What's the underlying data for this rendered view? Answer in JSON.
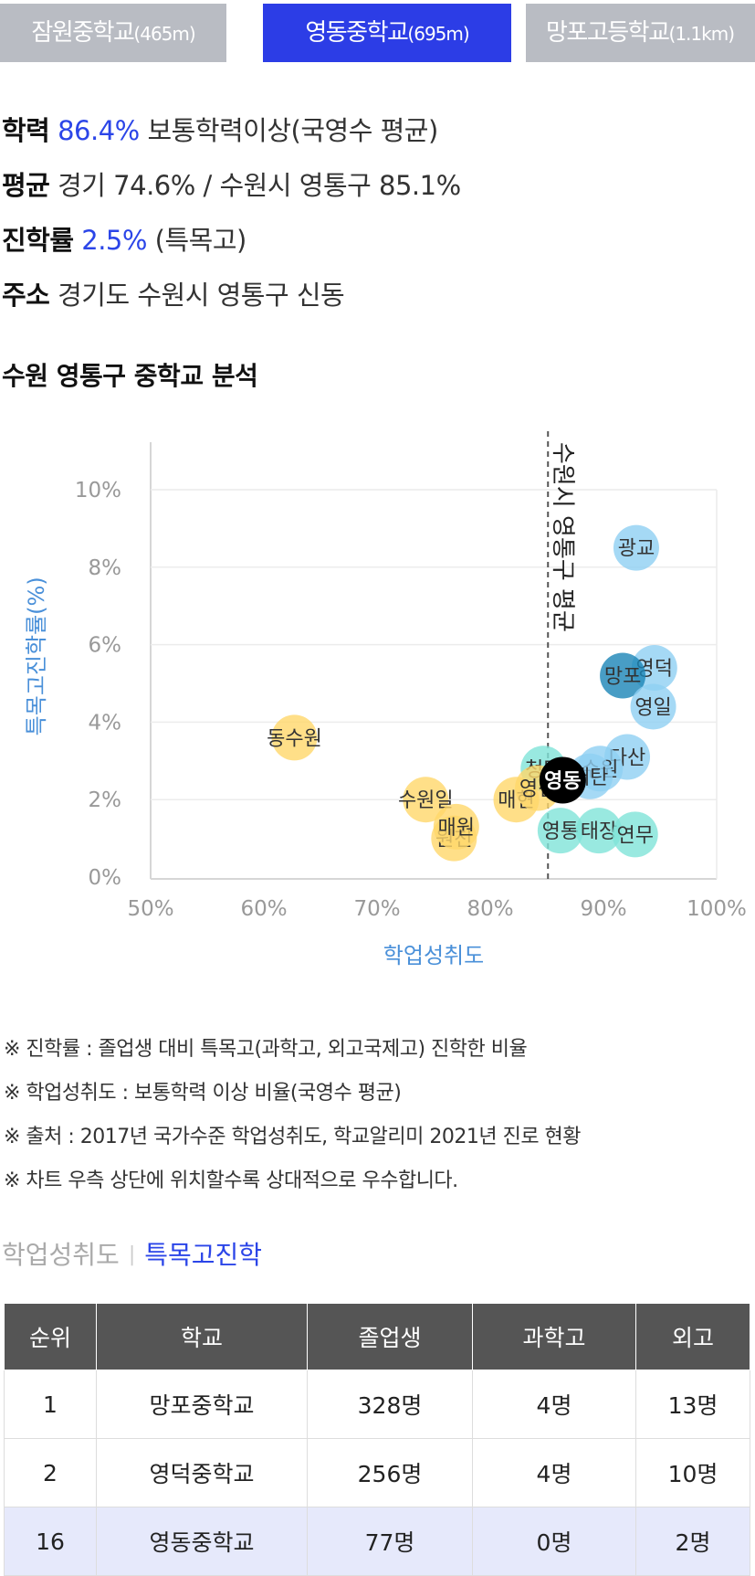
{
  "tabs": [
    {
      "name": "잠원중학교",
      "dist": "(465m)",
      "active": false
    },
    {
      "name": "영동중학교",
      "dist": "(695m)",
      "active": true
    },
    {
      "name": "망포고등학교",
      "dist": "(1.1km)",
      "active": false
    }
  ],
  "info": {
    "achievement": {
      "label": "학력",
      "value": "86.4%",
      "desc": "보통학력이상(국영수 평균)"
    },
    "average": {
      "label": "평균",
      "text": "경기 74.6% / 수원시 영통구 85.1%"
    },
    "advancement": {
      "label": "진학률",
      "value": "2.5%",
      "desc": "(특목고)"
    },
    "address": {
      "label": "주소",
      "text": "경기도 수원시 영통구 신동"
    }
  },
  "section_title": "수원 영통구 중학교 분석",
  "chart_data": {
    "type": "scatter",
    "xlabel": "학업성취도",
    "ylabel": "특목고진학률(%)",
    "xlim": [
      50,
      100
    ],
    "ylim": [
      0,
      10
    ],
    "x_ticks": [
      "50%",
      "60%",
      "70%",
      "80%",
      "90%",
      "100%"
    ],
    "y_ticks": [
      "0%",
      "2%",
      "4%",
      "6%",
      "8%",
      "10%"
    ],
    "avg_line": {
      "x": 85.1,
      "label": "수원시 영통구 평균"
    },
    "colors": {
      "blue": "#8fd0f2",
      "darkblue": "#1a84b7",
      "teal": "#7fe3d8",
      "yellow": "#ffd76a",
      "current": "#000000",
      "axis_label": "#4a90d9"
    },
    "points": [
      {
        "label": "광교",
        "x": 92.9,
        "y": 8.5,
        "color": "blue"
      },
      {
        "label": "영덕",
        "x": 94.5,
        "y": 5.4,
        "color": "blue"
      },
      {
        "label": "망포",
        "x": 91.7,
        "y": 5.2,
        "color": "darkblue"
      },
      {
        "label": "영일",
        "x": 94.4,
        "y": 4.4,
        "color": "blue"
      },
      {
        "label": "다산",
        "x": 92.1,
        "y": 3.1,
        "color": "blue"
      },
      {
        "label": "수원",
        "x": 89.7,
        "y": 2.8,
        "color": "blue"
      },
      {
        "label": "매탄",
        "x": 88.8,
        "y": 2.6,
        "color": "blue"
      },
      {
        "label": "청명",
        "x": 84.7,
        "y": 2.8,
        "color": "teal"
      },
      {
        "label": "영통",
        "x": 86.2,
        "y": 1.2,
        "color": "teal"
      },
      {
        "label": "태장",
        "x": 89.6,
        "y": 1.2,
        "color": "teal"
      },
      {
        "label": "연무",
        "x": 92.8,
        "y": 1.1,
        "color": "teal"
      },
      {
        "label": "동수원",
        "x": 62.7,
        "y": 3.6,
        "color": "yellow"
      },
      {
        "label": "수원일",
        "x": 74.3,
        "y": 2.0,
        "color": "yellow"
      },
      {
        "label": "원천",
        "x": 76.8,
        "y": 1.0,
        "color": "yellow"
      },
      {
        "label": "매원",
        "x": 77.0,
        "y": 1.3,
        "color": "yellow"
      },
      {
        "label": "매현",
        "x": 82.3,
        "y": 2.0,
        "color": "yellow"
      },
      {
        "label": "영신",
        "x": 84.2,
        "y": 2.3,
        "color": "yellow"
      },
      {
        "label": "영동",
        "x": 86.4,
        "y": 2.5,
        "color": "current"
      }
    ]
  },
  "notes": [
    "※ 진학률 : 졸업생 대비 특목고(과학고, 외고국제고) 진학한 비율",
    "※ 학업성취도 : 보통학력 이상 비율(국영수 평균)",
    "※ 출처 : 2017년 국가수준 학업성취도, 학교알리미 2021년 진로 현황",
    "※ 차트 우측 상단에 위치할수록 상대적으로 우수합니다."
  ],
  "subtabs": {
    "first": "학업성취도",
    "second": "특목고진학"
  },
  "table": {
    "headers": [
      "순위",
      "학교",
      "졸업생",
      "과학고",
      "외고"
    ],
    "rows": [
      [
        "1",
        "망포중학교",
        "328명",
        "4명",
        "13명"
      ],
      [
        "2",
        "영덕중학교",
        "256명",
        "4명",
        "10명"
      ],
      [
        "16",
        "영동중학교",
        "77명",
        "0명",
        "2명"
      ]
    ]
  }
}
